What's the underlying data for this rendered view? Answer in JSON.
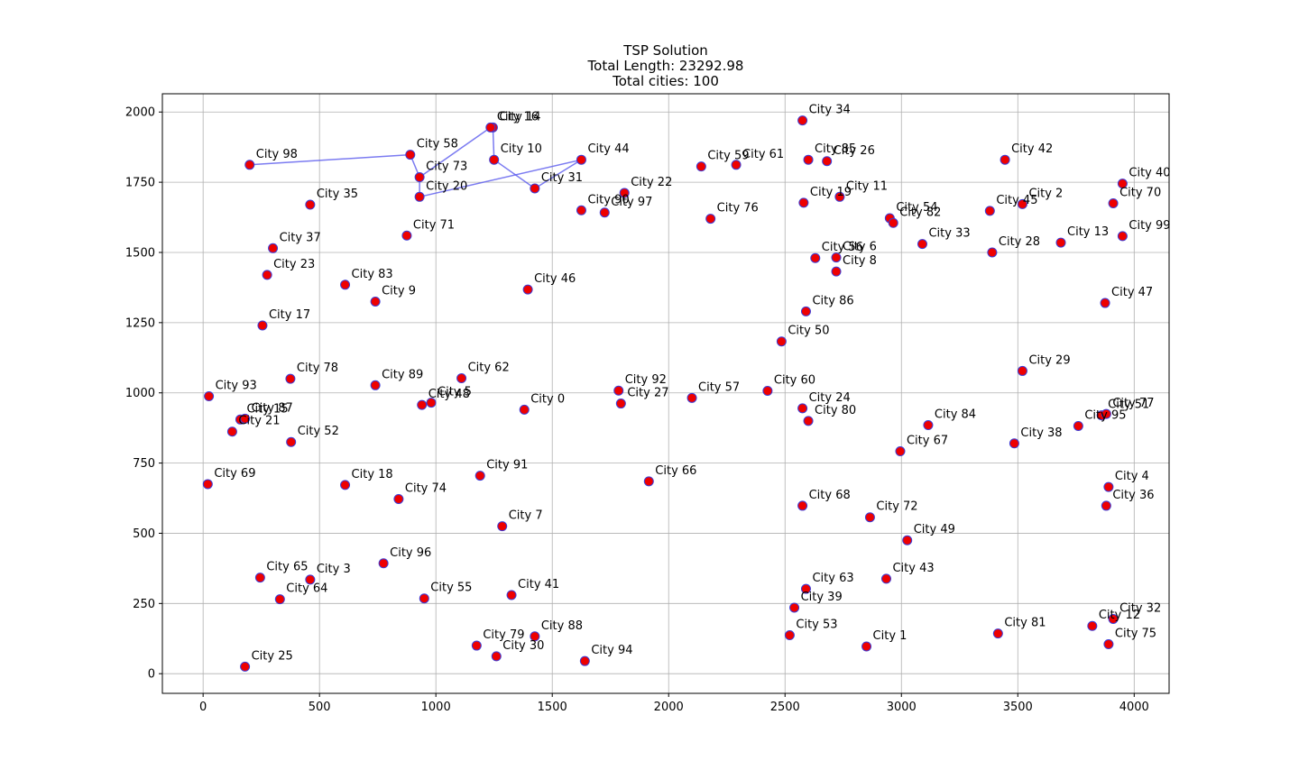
{
  "chart_data": {
    "type": "scatter",
    "title_lines": [
      "TSP Solution",
      "Total Length: 23292.98",
      "Total cities: 100"
    ],
    "xlim": [
      -175,
      4150
    ],
    "ylim": [
      -70,
      2065
    ],
    "x_ticks": [
      0,
      500,
      1000,
      1500,
      2000,
      2500,
      3000,
      3500,
      4000
    ],
    "y_ticks": [
      0,
      250,
      500,
      750,
      1000,
      1250,
      1500,
      1750,
      2000
    ],
    "x_tick_labels": [
      "0",
      "500",
      "1000",
      "1500",
      "2000",
      "2500",
      "3000",
      "3500",
      "4000"
    ],
    "y_tick_labels": [
      "0",
      "250",
      "500",
      "750",
      "1000",
      "1250",
      "1500",
      "1750",
      "2000"
    ],
    "grid": true,
    "colors": {
      "point": "#ee0000",
      "point_edge": "#3b3bd6",
      "route": "#5a5aee"
    },
    "cities": [
      {
        "label": "City 0",
        "x": 1380,
        "y": 940
      },
      {
        "label": "City 1",
        "x": 2850,
        "y": 97
      },
      {
        "label": "City 2",
        "x": 3520,
        "y": 1672
      },
      {
        "label": "City 3",
        "x": 460,
        "y": 335
      },
      {
        "label": "City 4",
        "x": 3890,
        "y": 665
      },
      {
        "label": "City 5",
        "x": 980,
        "y": 965
      },
      {
        "label": "City 6",
        "x": 2720,
        "y": 1482
      },
      {
        "label": "City 7",
        "x": 1285,
        "y": 525
      },
      {
        "label": "City 8",
        "x": 2720,
        "y": 1432
      },
      {
        "label": "City 9",
        "x": 740,
        "y": 1325
      },
      {
        "label": "City 10",
        "x": 1250,
        "y": 1830
      },
      {
        "label": "City 11",
        "x": 2735,
        "y": 1698
      },
      {
        "label": "City 12",
        "x": 3820,
        "y": 170
      },
      {
        "label": "City 13",
        "x": 3685,
        "y": 1535
      },
      {
        "label": "City 14",
        "x": 1245,
        "y": 1945
      },
      {
        "label": "City 15",
        "x": 160,
        "y": 905
      },
      {
        "label": "City 16",
        "x": 1235,
        "y": 1945
      },
      {
        "label": "City 17",
        "x": 255,
        "y": 1240
      },
      {
        "label": "City 18",
        "x": 610,
        "y": 672
      },
      {
        "label": "City 19",
        "x": 2580,
        "y": 1677
      },
      {
        "label": "City 20",
        "x": 930,
        "y": 1698
      },
      {
        "label": "City 21",
        "x": 125,
        "y": 862
      },
      {
        "label": "City 22",
        "x": 1810,
        "y": 1712
      },
      {
        "label": "City 23",
        "x": 275,
        "y": 1420
      },
      {
        "label": "City 24",
        "x": 2575,
        "y": 945
      },
      {
        "label": "City 25",
        "x": 180,
        "y": 25
      },
      {
        "label": "City 26",
        "x": 2680,
        "y": 1825
      },
      {
        "label": "City 27",
        "x": 1795,
        "y": 962
      },
      {
        "label": "City 28",
        "x": 3390,
        "y": 1500
      },
      {
        "label": "City 29",
        "x": 3520,
        "y": 1078
      },
      {
        "label": "City 30",
        "x": 1260,
        "y": 62
      },
      {
        "label": "City 31",
        "x": 1425,
        "y": 1728
      },
      {
        "label": "City 32",
        "x": 3910,
        "y": 195
      },
      {
        "label": "City 33",
        "x": 3090,
        "y": 1530
      },
      {
        "label": "City 34",
        "x": 2575,
        "y": 1970
      },
      {
        "label": "City 35",
        "x": 460,
        "y": 1670
      },
      {
        "label": "City 36",
        "x": 3880,
        "y": 598
      },
      {
        "label": "City 37",
        "x": 300,
        "y": 1515
      },
      {
        "label": "City 38",
        "x": 3485,
        "y": 820
      },
      {
        "label": "City 39",
        "x": 2540,
        "y": 235
      },
      {
        "label": "City 40",
        "x": 3950,
        "y": 1745
      },
      {
        "label": "City 41",
        "x": 1325,
        "y": 280
      },
      {
        "label": "City 42",
        "x": 3445,
        "y": 1830
      },
      {
        "label": "City 43",
        "x": 2935,
        "y": 338
      },
      {
        "label": "City 44",
        "x": 1625,
        "y": 1830
      },
      {
        "label": "City 45",
        "x": 3380,
        "y": 1648
      },
      {
        "label": "City 46",
        "x": 1395,
        "y": 1368
      },
      {
        "label": "City 47",
        "x": 3875,
        "y": 1320
      },
      {
        "label": "City 48",
        "x": 940,
        "y": 957
      },
      {
        "label": "City 49",
        "x": 3025,
        "y": 475
      },
      {
        "label": "City 50",
        "x": 2485,
        "y": 1183
      },
      {
        "label": "City 51",
        "x": 3860,
        "y": 920
      },
      {
        "label": "City 52",
        "x": 378,
        "y": 825
      },
      {
        "label": "City 53",
        "x": 2520,
        "y": 137
      },
      {
        "label": "City 54",
        "x": 2950,
        "y": 1622
      },
      {
        "label": "City 55",
        "x": 950,
        "y": 268
      },
      {
        "label": "City 56",
        "x": 2630,
        "y": 1480
      },
      {
        "label": "City 57",
        "x": 2100,
        "y": 982
      },
      {
        "label": "City 58",
        "x": 890,
        "y": 1848
      },
      {
        "label": "City 59",
        "x": 2140,
        "y": 1806
      },
      {
        "label": "City 60",
        "x": 2425,
        "y": 1007
      },
      {
        "label": "City 61",
        "x": 2290,
        "y": 1812
      },
      {
        "label": "City 62",
        "x": 1110,
        "y": 1052
      },
      {
        "label": "City 63",
        "x": 2590,
        "y": 302
      },
      {
        "label": "City 64",
        "x": 330,
        "y": 265
      },
      {
        "label": "City 65",
        "x": 245,
        "y": 342
      },
      {
        "label": "City 66",
        "x": 1915,
        "y": 685
      },
      {
        "label": "City 67",
        "x": 2995,
        "y": 792
      },
      {
        "label": "City 68",
        "x": 2575,
        "y": 598
      },
      {
        "label": "City 69",
        "x": 20,
        "y": 675
      },
      {
        "label": "City 70",
        "x": 3910,
        "y": 1675
      },
      {
        "label": "City 71",
        "x": 875,
        "y": 1560
      },
      {
        "label": "City 72",
        "x": 2865,
        "y": 557
      },
      {
        "label": "City 73",
        "x": 930,
        "y": 1768
      },
      {
        "label": "City 74",
        "x": 840,
        "y": 622
      },
      {
        "label": "City 75",
        "x": 3890,
        "y": 105
      },
      {
        "label": "City 76",
        "x": 2180,
        "y": 1620
      },
      {
        "label": "City 77",
        "x": 3880,
        "y": 925
      },
      {
        "label": "City 78",
        "x": 375,
        "y": 1050
      },
      {
        "label": "City 79",
        "x": 1175,
        "y": 100
      },
      {
        "label": "City 80",
        "x": 2600,
        "y": 900
      },
      {
        "label": "City 81",
        "x": 3415,
        "y": 143
      },
      {
        "label": "City 82",
        "x": 2965,
        "y": 1605
      },
      {
        "label": "City 83",
        "x": 610,
        "y": 1385
      },
      {
        "label": "City 84",
        "x": 3115,
        "y": 885
      },
      {
        "label": "City 85",
        "x": 2600,
        "y": 1830
      },
      {
        "label": "City 86",
        "x": 2590,
        "y": 1290
      },
      {
        "label": "City 87",
        "x": 180,
        "y": 908
      },
      {
        "label": "City 88",
        "x": 1425,
        "y": 133
      },
      {
        "label": "City 89",
        "x": 740,
        "y": 1027
      },
      {
        "label": "City 90",
        "x": 1625,
        "y": 1650
      },
      {
        "label": "City 91",
        "x": 1190,
        "y": 705
      },
      {
        "label": "City 92",
        "x": 1785,
        "y": 1008
      },
      {
        "label": "City 93",
        "x": 25,
        "y": 988
      },
      {
        "label": "City 94",
        "x": 1640,
        "y": 45
      },
      {
        "label": "City 95",
        "x": 3760,
        "y": 882
      },
      {
        "label": "City 96",
        "x": 775,
        "y": 393
      },
      {
        "label": "City 97",
        "x": 1725,
        "y": 1642
      },
      {
        "label": "City 98",
        "x": 200,
        "y": 1812
      },
      {
        "label": "City 99",
        "x": 3950,
        "y": 1558
      }
    ],
    "route": [
      98,
      58,
      73,
      20,
      44,
      31,
      10,
      14,
      16,
      73
    ]
  }
}
